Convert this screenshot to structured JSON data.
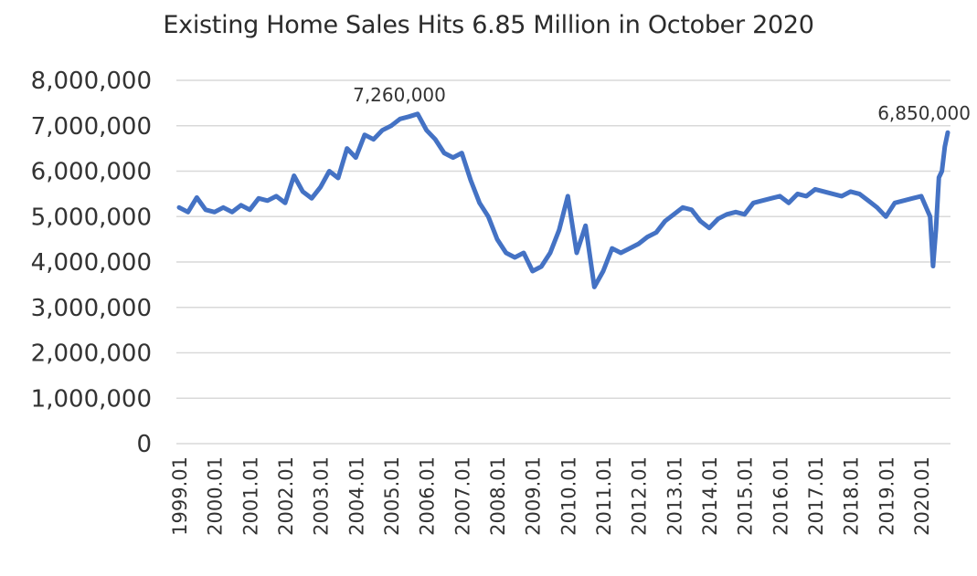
{
  "chart_data": {
    "type": "line",
    "title": "Existing Home Sales Hits 6.85 Million in October 2020",
    "xlabel": "",
    "ylabel": "",
    "ylim": [
      0,
      8000000
    ],
    "yticks": [
      0,
      1000000,
      2000000,
      3000000,
      4000000,
      5000000,
      6000000,
      7000000,
      8000000
    ],
    "ytick_labels": [
      "0",
      "1,000,000",
      "2,000,000",
      "3,000,000",
      "4,000,000",
      "5,000,000",
      "6,000,000",
      "7,000,000",
      "8,000,000"
    ],
    "xtick_labels": [
      "1999.01",
      "2000.01",
      "2001.01",
      "2002.01",
      "2003.01",
      "2004.01",
      "2005.01",
      "2006.01",
      "2007.01",
      "2008.01",
      "2009.01",
      "2010.01",
      "2011.01",
      "2012.01",
      "2013.01",
      "2014.01",
      "2015.01",
      "2016.01",
      "2017.01",
      "2018.01",
      "2019.01",
      "2020.01"
    ],
    "grid": "horizontal",
    "line_color": "#4472C4",
    "series": [
      {
        "x": [
          "1999.01",
          "1999.04",
          "1999.07",
          "1999.10",
          "2000.01",
          "2000.04",
          "2000.07",
          "2000.10",
          "2001.01",
          "2001.04",
          "2001.07",
          "2001.10",
          "2002.01",
          "2002.04",
          "2002.07",
          "2002.10",
          "2003.01",
          "2003.04",
          "2003.07",
          "2003.10",
          "2004.01",
          "2004.04",
          "2004.07",
          "2004.10",
          "2005.01",
          "2005.04",
          "2005.07",
          "2005.10",
          "2006.01",
          "2006.04",
          "2006.07",
          "2006.10",
          "2007.01",
          "2007.04",
          "2007.07",
          "2007.10",
          "2008.01",
          "2008.04",
          "2008.07",
          "2008.10",
          "2009.01",
          "2009.04",
          "2009.07",
          "2009.10",
          "2010.01",
          "2010.04",
          "2010.07",
          "2010.10",
          "2011.01",
          "2011.04",
          "2011.07",
          "2011.10",
          "2012.01",
          "2012.04",
          "2012.07",
          "2012.10",
          "2013.01",
          "2013.04",
          "2013.07",
          "2013.10",
          "2014.01",
          "2014.04",
          "2014.07",
          "2014.10",
          "2015.01",
          "2015.04",
          "2015.07",
          "2015.10",
          "2016.01",
          "2016.04",
          "2016.07",
          "2016.10",
          "2017.01",
          "2017.04",
          "2017.07",
          "2017.10",
          "2018.01",
          "2018.04",
          "2018.07",
          "2018.10",
          "2019.01",
          "2019.04",
          "2019.07",
          "2019.10",
          "2020.01",
          "2020.04",
          "2020.05",
          "2020.06",
          "2020.07",
          "2020.08",
          "2020.09",
          "2020.10"
        ],
        "values": [
          5200000,
          5100000,
          5420000,
          5150000,
          5100000,
          5200000,
          5100000,
          5250000,
          5150000,
          5400000,
          5350000,
          5450000,
          5300000,
          5900000,
          5550000,
          5400000,
          5650000,
          6000000,
          5850000,
          6500000,
          6300000,
          6800000,
          6700000,
          6900000,
          7000000,
          7150000,
          7200000,
          7260000,
          6900000,
          6700000,
          6400000,
          6300000,
          6400000,
          5800000,
          5300000,
          5000000,
          4500000,
          4200000,
          4100000,
          4200000,
          3800000,
          3900000,
          4200000,
          4700000,
          5450000,
          4200000,
          4800000,
          3450000,
          3800000,
          4300000,
          4200000,
          4300000,
          4400000,
          4550000,
          4650000,
          4900000,
          5050000,
          5200000,
          5150000,
          4900000,
          4750000,
          4950000,
          5050000,
          5100000,
          5050000,
          5300000,
          5350000,
          5400000,
          5450000,
          5300000,
          5500000,
          5450000,
          5600000,
          5550000,
          5500000,
          5450000,
          5550000,
          5500000,
          5350000,
          5200000,
          5000000,
          5300000,
          5350000,
          5400000,
          5450000,
          5000000,
          3910000,
          4720000,
          5860000,
          6000000,
          6540000,
          6850000
        ]
      }
    ],
    "annotations": [
      {
        "x": "2005.10",
        "value": 7260000,
        "label": "7,260,000"
      },
      {
        "x": "2020.10",
        "value": 6850000,
        "label": "6,850,000"
      }
    ]
  }
}
